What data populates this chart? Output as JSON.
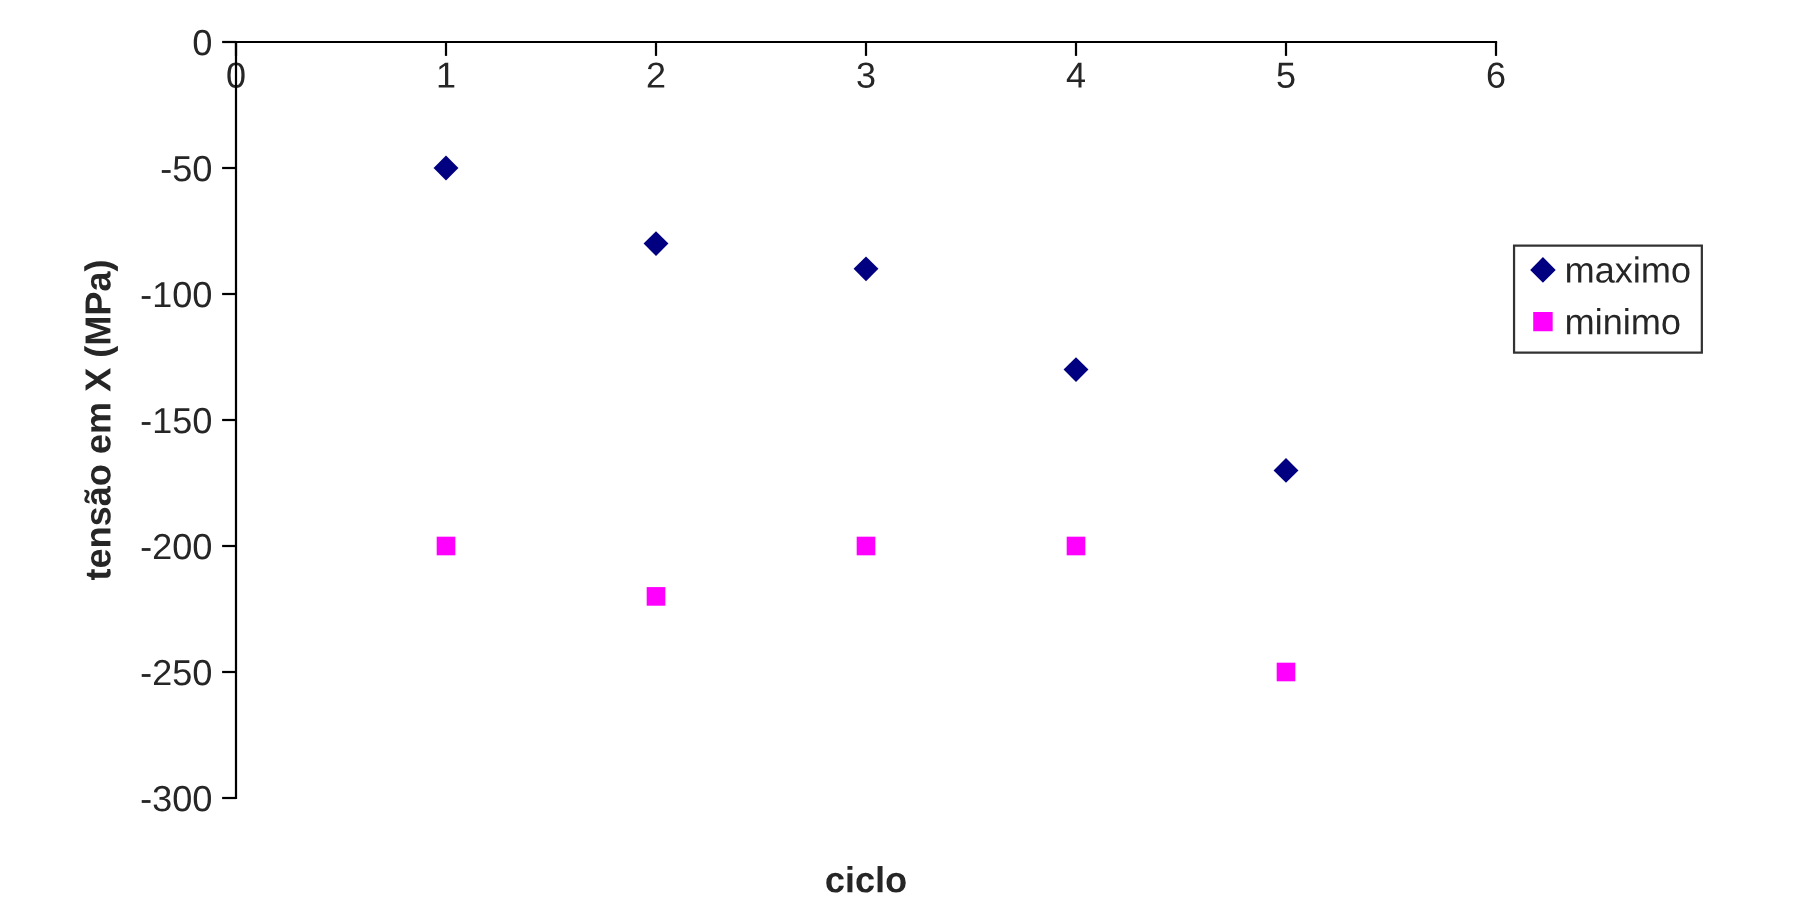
{
  "chart_data": {
    "type": "scatter",
    "xlabel": "ciclo",
    "ylabel": "tensão em X (MPa)",
    "x": [
      1,
      2,
      3,
      4,
      5
    ],
    "series": [
      {
        "name": "maximo",
        "color": "#000080",
        "marker": "diamond",
        "values": [
          -50,
          -80,
          -90,
          -130,
          -170
        ]
      },
      {
        "name": "minimo",
        "color": "#ff00ff",
        "marker": "square",
        "values": [
          -200,
          -220,
          -200,
          -200,
          -250
        ]
      }
    ],
    "xlim": [
      0,
      6
    ],
    "xticks": [
      0,
      1,
      2,
      3,
      4,
      5,
      6
    ],
    "ylim": [
      -300,
      0
    ],
    "yticks": [
      -300,
      -250,
      -200,
      -150,
      -100,
      -50,
      0
    ],
    "grid": false,
    "legend": "right"
  }
}
